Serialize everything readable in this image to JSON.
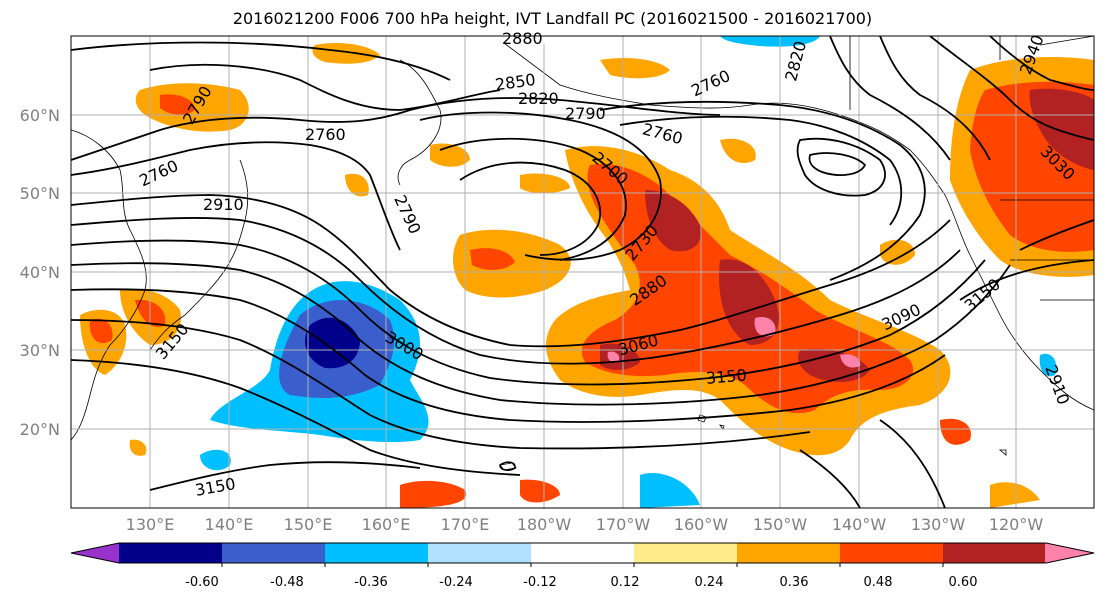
{
  "title": "2016021200 F006 700 hPa height, IVT Landfall PC (2016021500 - 2016021700)",
  "lat_labels": [
    "60°N",
    "50°N",
    "40°N",
    "30°N",
    "20°N"
  ],
  "lon_labels": [
    "130°E",
    "140°E",
    "150°E",
    "160°E",
    "170°E",
    "180°W",
    "170°W",
    "160°W",
    "150°W",
    "140°W",
    "130°W",
    "120°W"
  ],
  "contour_labels": [
    "2880",
    "2850",
    "2820",
    "2790",
    "2760",
    "2760",
    "2760",
    "2820",
    "2760",
    "2790",
    "2910",
    "2790",
    "2700",
    "2730",
    "2880",
    "3060",
    "3000",
    "3090",
    "3150",
    "3150",
    "3150",
    "3150",
    "3030",
    "2940",
    "2910"
  ],
  "colorbar": {
    "ticks": [
      "-0.60",
      "-0.48",
      "-0.36",
      "-0.24",
      "-0.12",
      "0.12",
      "0.24",
      "0.36",
      "0.48",
      "0.60"
    ],
    "colors": [
      "#9932cc",
      "#00008b",
      "#3a5fcd",
      "#00bfff",
      "#b0e2ff",
      "#ffffff",
      "#ffec8b",
      "#ffa500",
      "#ff4500",
      "#b22222",
      "#ff82ab"
    ]
  }
}
